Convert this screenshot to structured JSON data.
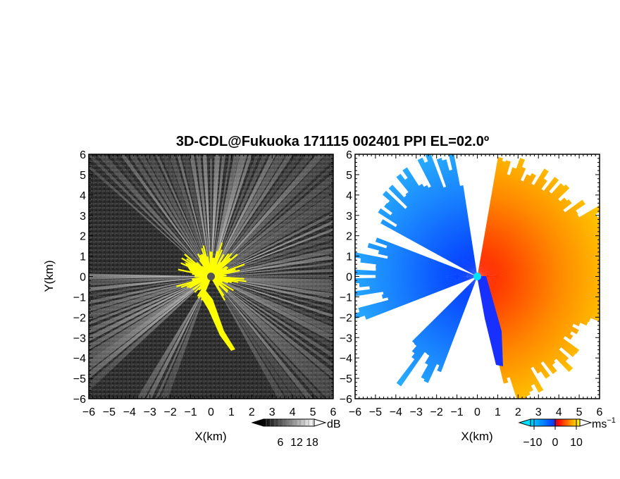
{
  "chart_data": [
    {
      "type": "heatmap",
      "panel": "left",
      "title": "3D-CDL@Fukuoka 171115 002401 PPI EL=02.0º",
      "xlabel": "X(km)",
      "ylabel": "Y(km)",
      "xlim": [
        -6,
        6
      ],
      "ylim": [
        -6,
        6
      ],
      "xticks": [
        "-6",
        "-5",
        "-4",
        "-3",
        "-2",
        "-1",
        "0",
        "1",
        "2",
        "3",
        "4",
        "5",
        "6"
      ],
      "yticks": [
        "-6",
        "-5",
        "-4",
        "-3",
        "-2",
        "-1",
        "0",
        "1",
        "2",
        "3",
        "4",
        "5",
        "6"
      ],
      "colorbar": {
        "unit": "dB",
        "ticks": [
          "6",
          "12",
          "18"
        ],
        "colors": [
          "#000000",
          "#ffffff"
        ],
        "extend": "both"
      },
      "highlight_color": "#ffff00",
      "radar_site": {
        "x": 0,
        "y": 0,
        "color": "#555555"
      }
    },
    {
      "type": "heatmap",
      "panel": "right",
      "xlabel": "X(km)",
      "xlim": [
        -6,
        6
      ],
      "ylim": [
        -6,
        6
      ],
      "xticks": [
        "-6",
        "-5",
        "-4",
        "-3",
        "-2",
        "-1",
        "0",
        "1",
        "2",
        "3",
        "4",
        "5",
        "6"
      ],
      "yticks": [
        "-6",
        "-5",
        "-4",
        "-3",
        "-2",
        "-1",
        "0",
        "1",
        "2",
        "3",
        "4",
        "5",
        "6"
      ],
      "colorbar": {
        "unit": "ms",
        "unit_exp": "−1",
        "ticks": [
          "−10",
          "0",
          "10"
        ],
        "colors": [
          "#00d8ff",
          "#0040ff",
          "#ff0000",
          "#ffff00"
        ],
        "extend": "both"
      },
      "radar_site": {
        "x": 0,
        "y": 0,
        "color": "#00e0ff"
      }
    }
  ]
}
